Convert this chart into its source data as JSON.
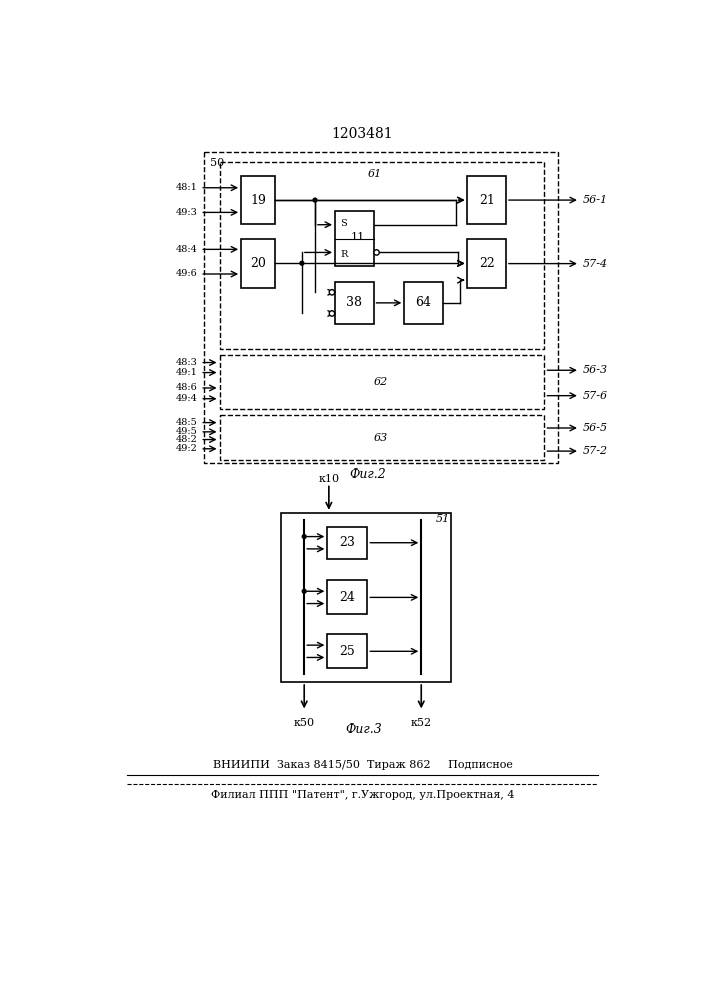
{
  "title": "1203481",
  "fig2_label": "Фиг.2",
  "fig3_label": "Фиг.3",
  "footer_line1": "ВНИИПИ  Заказ 8415/50  Тираж 862     Подписное",
  "footer_line2": "Филиал ППП \"Патент\", г.Ужгород, ул.Проектная, 4",
  "bg_color": "#ffffff",
  "line_color": "#000000"
}
